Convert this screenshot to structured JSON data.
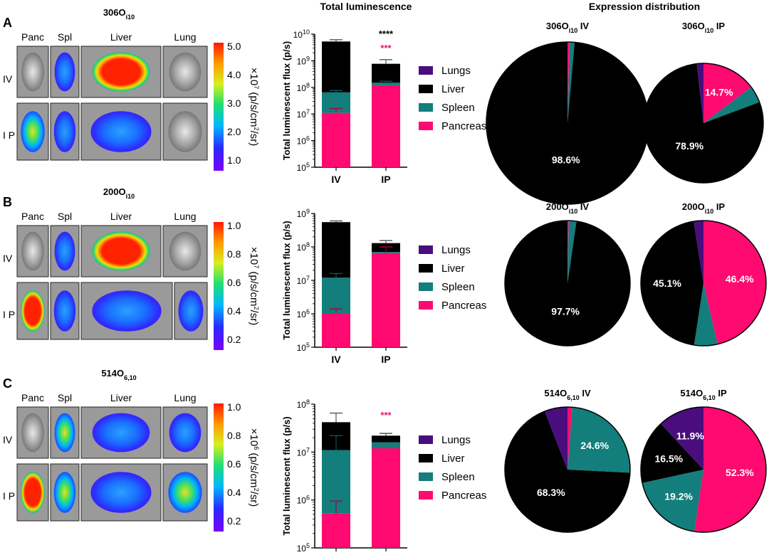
{
  "colors": {
    "lungs": "#4a0d7e",
    "liver": "#000000",
    "spleen": "#137e7b",
    "pancreas": "#ff0a70",
    "sig_black": "#000000",
    "sig_pink": "#e8127a"
  },
  "headers": {
    "luminescence": "Total luminescence",
    "distribution": "Expression distribution"
  },
  "legend": [
    "Lungs",
    "Liver",
    "Spleen",
    "Pancreas"
  ],
  "ylabel": "Total luminescent flux (p/s)",
  "x_categories": [
    "IV",
    "IP"
  ],
  "panels": [
    {
      "letter": "A",
      "lipid": {
        "base": "306O",
        "sub": "i10"
      },
      "organ_labels": [
        "Panc",
        "Spl",
        "Liver",
        "Lung"
      ],
      "route_labels": [
        "IV",
        "I P"
      ],
      "scale_ticks": [
        "5.0",
        "4.0",
        "3.0",
        "2.0",
        "1.0"
      ],
      "scale_unit": {
        "pre": "×10",
        "exp": "7",
        "mid": " (p/s/cm",
        "exp2": "2",
        "post": "/sr)"
      }
    },
    {
      "letter": "B",
      "lipid": {
        "base": "200O",
        "sub": "i10"
      },
      "organ_labels": [
        "Panc",
        "Spl",
        "Liver",
        "Lung"
      ],
      "route_labels": [
        "IV",
        "I P"
      ],
      "scale_ticks": [
        "1.0",
        "0.8",
        "0.6",
        "0.4",
        "0.2"
      ],
      "scale_unit": {
        "pre": "×10",
        "exp": "7",
        "mid": " (p/s/cm",
        "exp2": "2",
        "post": "/sr)"
      }
    },
    {
      "letter": "C",
      "lipid": {
        "base": "514O",
        "sub": "6,10"
      },
      "organ_labels": [
        "Panc",
        "Spl",
        "Liver",
        "Lung"
      ],
      "route_labels": [
        "IV",
        "I P"
      ],
      "scale_ticks": [
        "1.0",
        "0.8",
        "0.6",
        "0.4",
        "0.2"
      ],
      "scale_unit": {
        "pre": "×10",
        "exp": "6",
        "mid": " (p/s/cm",
        "exp2": "2",
        "post": "/sr)"
      }
    }
  ],
  "chart_data": [
    {
      "type": "bar",
      "stacked": true,
      "log_scale": true,
      "title": "Total luminescence",
      "ylabel": "Total luminescent flux (p/s)",
      "categories": [
        "IV",
        "IP"
      ],
      "ylim_exp": [
        5,
        10
      ],
      "ytick_labels": [
        {
          "base": "10",
          "exp": "5"
        },
        {
          "base": "10",
          "exp": "6"
        },
        {
          "base": "10",
          "exp": "7"
        },
        {
          "base": "10",
          "exp": "8"
        },
        {
          "base": "10",
          "exp": "9"
        },
        {
          "base": "10",
          "exp": "10"
        }
      ],
      "totals": [
        5300000000.0,
        770000000.0
      ],
      "series": [
        {
          "name": "Pancreas",
          "tops": [
            11000000.0,
            120000000.0
          ]
        },
        {
          "name": "Spleen",
          "tops": [
            65000000.0,
            150000000.0
          ]
        },
        {
          "name": "Liver",
          "tops": [
            5300000000.0,
            770000000.0
          ]
        }
      ],
      "errors": [
        {
          "cat": 0,
          "value": 5300000000.0,
          "upper": 6200000000.0
        },
        {
          "cat": 0,
          "value": 65000000.0,
          "upper": 76000000.0
        },
        {
          "cat": 0,
          "value": 11000000.0,
          "upper": 16000000.0
        },
        {
          "cat": 1,
          "value": 770000000.0,
          "upper": 1100000000.0
        },
        {
          "cat": 1,
          "value": 150000000.0,
          "upper": 170000000.0
        }
      ],
      "significance": [
        {
          "cat": 1,
          "text": "****",
          "color": "sig_black"
        },
        {
          "cat": 1,
          "text": "***",
          "color": "sig_pink"
        }
      ]
    },
    {
      "type": "bar",
      "stacked": true,
      "log_scale": true,
      "ylabel": "Total luminescent flux (p/s)",
      "categories": [
        "IV",
        "IP"
      ],
      "ylim_exp": [
        5,
        9
      ],
      "ytick_labels": [
        {
          "base": "10",
          "exp": "5"
        },
        {
          "base": "10",
          "exp": "6"
        },
        {
          "base": "10",
          "exp": "7"
        },
        {
          "base": "10",
          "exp": "8"
        },
        {
          "base": "10",
          "exp": "9"
        }
      ],
      "totals": [
        550000000.0,
        130000000.0
      ],
      "series": [
        {
          "name": "Pancreas",
          "tops": [
            1050000.0,
            65000000.0
          ]
        },
        {
          "name": "Spleen",
          "tops": [
            12000000.0,
            70000000.0
          ]
        },
        {
          "name": "Liver",
          "tops": [
            550000000.0,
            130000000.0
          ]
        }
      ],
      "errors": [
        {
          "cat": 0,
          "value": 550000000.0,
          "upper": 600000000.0
        },
        {
          "cat": 0,
          "value": 12000000.0,
          "upper": 16000000.0
        },
        {
          "cat": 0,
          "value": 1050000.0,
          "upper": 1400000.0
        },
        {
          "cat": 1,
          "value": 130000000.0,
          "upper": 155000000.0
        },
        {
          "cat": 1,
          "value": 65000000.0,
          "upper": 100000000.0
        }
      ],
      "significance": []
    },
    {
      "type": "bar",
      "stacked": true,
      "log_scale": true,
      "ylabel": "Total luminescent flux (p/s)",
      "categories": [
        "IV",
        "IP"
      ],
      "ylim_exp": [
        5,
        8
      ],
      "ytick_labels": [
        {
          "base": "10",
          "exp": "5"
        },
        {
          "base": "10",
          "exp": "6"
        },
        {
          "base": "10",
          "exp": "7"
        },
        {
          "base": "10",
          "exp": "8"
        }
      ],
      "totals": [
        43000000.0,
        22000000.0
      ],
      "series": [
        {
          "name": "Pancreas",
          "tops": [
            520000.0,
            12000000.0
          ]
        },
        {
          "name": "Spleen",
          "tops": [
            11000000.0,
            16000000.0
          ]
        },
        {
          "name": "Liver",
          "tops": [
            42000000.0,
            22000000.0
          ]
        }
      ],
      "errors": [
        {
          "cat": 0,
          "value": 42000000.0,
          "upper": 65000000.0
        },
        {
          "cat": 0,
          "value": 11000000.0,
          "upper": 22000000.0
        },
        {
          "cat": 0,
          "value": 520000.0,
          "upper": 950000.0
        },
        {
          "cat": 1,
          "value": 22000000.0,
          "upper": 24500000.0
        }
      ],
      "significance": [
        {
          "cat": 1,
          "text": "***",
          "color": "sig_pink"
        }
      ]
    },
    {
      "type": "pie",
      "pies": [
        {
          "title": {
            "base": "306O",
            "sub": "i10",
            "route": "IV"
          },
          "slices": [
            {
              "name": "Pancreas",
              "value": 0.4
            },
            {
              "name": "Spleen",
              "value": 1.0
            },
            {
              "name": "Liver",
              "value": 98.6,
              "label": "98.6%"
            }
          ]
        },
        {
          "title": {
            "base": "306O",
            "sub": "i10",
            "route": "IP"
          },
          "slices": [
            {
              "name": "Pancreas",
              "value": 14.7,
              "label": "14.7%"
            },
            {
              "name": "Spleen",
              "value": 4.6
            },
            {
              "name": "Liver",
              "value": 78.9,
              "label": "78.9%"
            },
            {
              "name": "Lungs",
              "value": 1.8
            }
          ]
        },
        {
          "title": {
            "base": "200O",
            "sub": "i10",
            "route": "IV"
          },
          "slices": [
            {
              "name": "Pancreas",
              "value": 0.3
            },
            {
              "name": "Spleen",
              "value": 2.0
            },
            {
              "name": "Liver",
              "value": 97.7,
              "label": "97.7%"
            }
          ]
        },
        {
          "title": {
            "base": "200O",
            "sub": "i10",
            "route": "IP"
          },
          "slices": [
            {
              "name": "Pancreas",
              "value": 46.4,
              "label": "46.4%"
            },
            {
              "name": "Spleen",
              "value": 6.0
            },
            {
              "name": "Liver",
              "value": 45.1,
              "label": "45.1%"
            },
            {
              "name": "Lungs",
              "value": 2.5
            }
          ]
        },
        {
          "title": {
            "base": "514O",
            "sub": "6,10",
            "route": "IV"
          },
          "slices": [
            {
              "name": "Pancreas",
              "value": 1.2
            },
            {
              "name": "Spleen",
              "value": 24.6,
              "label": "24.6%"
            },
            {
              "name": "Liver",
              "value": 68.3,
              "label": "68.3%"
            },
            {
              "name": "Lungs",
              "value": 5.9
            }
          ]
        },
        {
          "title": {
            "base": "514O",
            "sub": "6,10",
            "route": "IP"
          },
          "slices": [
            {
              "name": "Pancreas",
              "value": 52.3,
              "label": "52.3%"
            },
            {
              "name": "Spleen",
              "value": 19.2,
              "label": "19.2%"
            },
            {
              "name": "Liver",
              "value": 16.5,
              "label": "16.5%"
            },
            {
              "name": "Lungs",
              "value": 11.9,
              "label": "11.9%"
            }
          ]
        }
      ]
    }
  ]
}
